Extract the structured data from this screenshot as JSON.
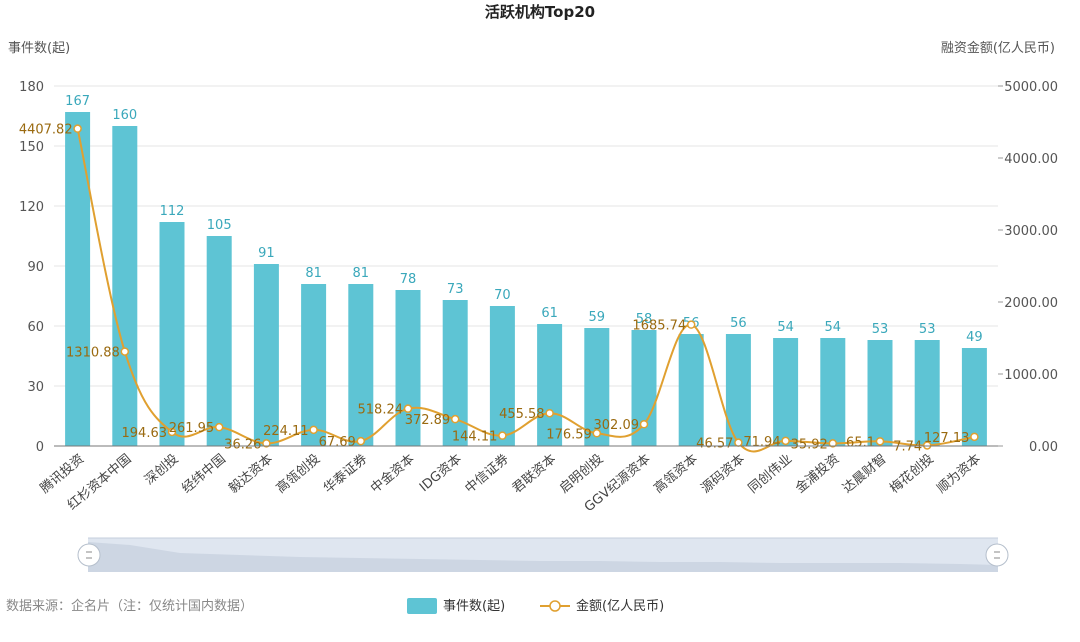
{
  "chart_data": {
    "type": "bar",
    "title": "活跃机构Top20",
    "categories": [
      "腾讯投资",
      "红杉资本中国",
      "深创投",
      "经纬中国",
      "毅达资本",
      "高瓴创投",
      "华泰证券",
      "中金资本",
      "IDG资本",
      "中信证券",
      "君联资本",
      "启明创投",
      "GGV纪源资本",
      "高瓴资本",
      "源码资本",
      "同创伟业",
      "金浦投资",
      "达晨财智",
      "梅花创投",
      "顺为资本"
    ],
    "series": [
      {
        "name": "事件数(起)",
        "type": "bar",
        "axis": "left",
        "color": "#5ec4d4",
        "values": [
          167,
          160,
          112,
          105,
          91,
          81,
          81,
          78,
          73,
          70,
          61,
          59,
          58,
          56,
          56,
          54,
          54,
          53,
          53,
          49
        ]
      },
      {
        "name": "金额(亿人民币)",
        "type": "line",
        "axis": "right",
        "color": "#e0a030",
        "values": [
          4407.82,
          1310.88,
          194.63,
          261.95,
          36.26,
          224.11,
          67.69,
          518.24,
          372.89,
          144.11,
          455.58,
          176.59,
          302.09,
          1685.74,
          46.57,
          71.94,
          35.92,
          65.1,
          7.74,
          127.13
        ]
      }
    ],
    "ylabel_left": "事件数(起)",
    "ylabel_right": "融资金额(亿人民币)",
    "ylim_left": [
      0,
      180
    ],
    "yticks_left": [
      "0",
      "30",
      "60",
      "90",
      "120",
      "150",
      "180"
    ],
    "ylim_right": [
      0,
      5000
    ],
    "yticks_right": [
      "0.00",
      "1000.00",
      "2000.00",
      "3000.00",
      "4000.00",
      "5000.00"
    ],
    "grid": true,
    "legend": "bottom-center"
  },
  "footer": {
    "source": "数据来源：企名片（注：仅统计国内数据）"
  },
  "colors": {
    "bar": "#5ec4d4",
    "line": "#e0a030",
    "bar_label": "#3aa8bb",
    "line_label": "#9a6a10",
    "axis_text": "#555555",
    "grid": "#e6e6e6",
    "slider_bg": "#dfe6f0"
  }
}
